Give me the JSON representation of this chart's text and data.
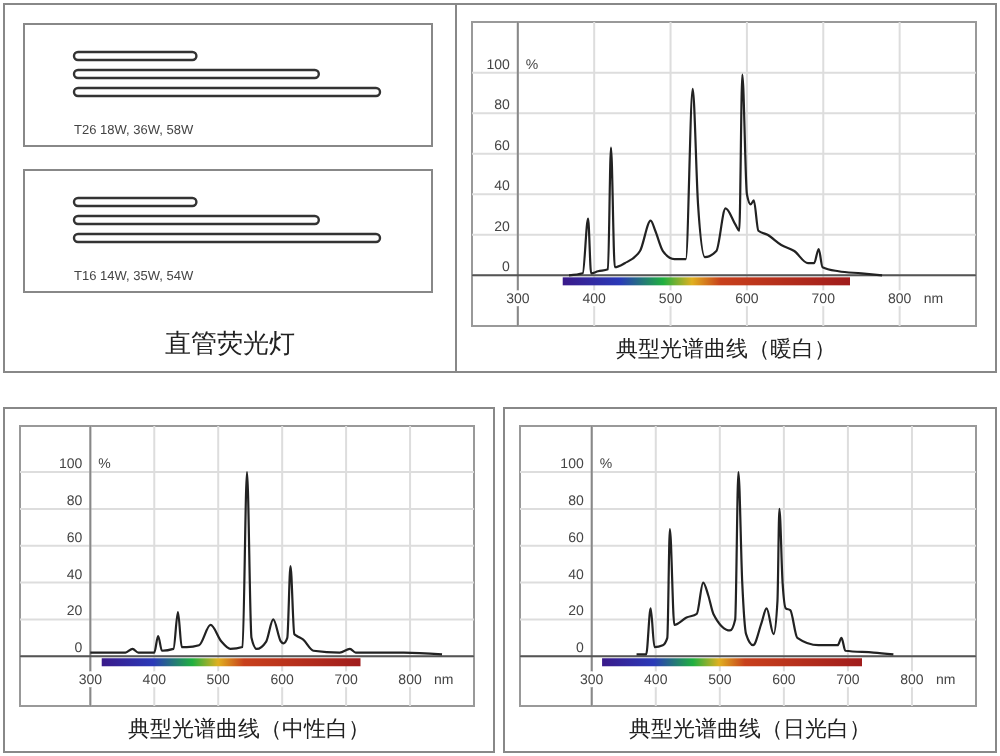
{
  "chart_data": [
    {
      "type": "other",
      "title": "直管荧光灯",
      "annotations": [
        "T26  18W, 36W, 58W",
        "T16  14W, 35W, 54W"
      ]
    },
    {
      "type": "line",
      "title": "典型光谱曲线（暖白）",
      "xlabel": "nm",
      "ylabel": "%",
      "xlim": [
        240,
        900
      ],
      "ylim": [
        -25,
        125
      ],
      "xticks": [
        300,
        400,
        500,
        600,
        700,
        800
      ],
      "yticks": [
        0,
        20,
        40,
        60,
        80,
        100
      ],
      "grid": true,
      "marker": "none",
      "line_style": "solid",
      "series": [
        {
          "color": "#222222",
          "x": [
            367,
            385,
            392,
            396,
            405,
            418,
            422,
            427,
            440,
            460,
            474,
            480,
            490,
            505,
            520,
            529,
            536,
            545,
            560,
            572,
            585,
            590,
            594,
            600,
            605,
            609,
            615,
            627,
            645,
            662,
            680,
            688,
            694,
            699,
            720,
            750,
            777
          ],
          "values": [
            0,
            1,
            28,
            1,
            2,
            3,
            63,
            4,
            6,
            12,
            27,
            22,
            12,
            8,
            8,
            92,
            35,
            9,
            12,
            33,
            25,
            22,
            99,
            40,
            35,
            37,
            22,
            20,
            15,
            12,
            6,
            6,
            13,
            4,
            2,
            1,
            0
          ]
        }
      ]
    },
    {
      "type": "line",
      "title": "典型光谱曲线（中性白）",
      "xlabel": "nm",
      "ylabel": "%",
      "xlim": [
        190,
        900
      ],
      "ylim": [
        -27,
        125
      ],
      "xticks": [
        300,
        400,
        500,
        600,
        700,
        800
      ],
      "yticks": [
        0,
        20,
        40,
        60,
        80,
        100
      ],
      "grid": true,
      "marker": "none",
      "line_style": "solid",
      "series": [
        {
          "color": "#222222",
          "x": [
            300,
            355,
            366,
            375,
            400,
            406,
            412,
            430,
            437,
            443,
            451,
            470,
            488,
            505,
            519,
            538,
            545,
            552,
            560,
            575,
            586,
            598,
            602,
            608,
            613,
            619,
            623,
            633,
            649,
            690,
            706,
            715,
            790,
            850
          ],
          "values": [
            2,
            2,
            4,
            2,
            2,
            11,
            3,
            4,
            24,
            5,
            5,
            6,
            17,
            8,
            4,
            5,
            100,
            10,
            4,
            8,
            20,
            8,
            7,
            10,
            49,
            12,
            11,
            9,
            3,
            2,
            4,
            2,
            2,
            1
          ]
        }
      ]
    },
    {
      "type": "line",
      "title": "典型光谱曲线（日光白）",
      "xlabel": "nm",
      "ylabel": "%",
      "xlim": [
        188,
        900
      ],
      "ylim": [
        -27,
        125
      ],
      "xticks": [
        300,
        400,
        500,
        600,
        700,
        800
      ],
      "yticks": [
        0,
        20,
        40,
        60,
        80,
        100
      ],
      "grid": true,
      "marker": "none",
      "line_style": "solid",
      "series": [
        {
          "color": "#222222",
          "x": [
            370,
            385,
            392,
            398,
            411,
            418,
            422,
            429,
            448,
            464,
            474,
            482,
            490,
            516,
            524,
            529,
            535,
            541,
            552,
            565,
            573,
            584,
            590,
            593,
            598,
            603,
            610,
            621,
            654,
            684,
            690,
            696,
            740,
            771
          ],
          "values": [
            1,
            1,
            26,
            5,
            6,
            10,
            69,
            17,
            21,
            23,
            40,
            33,
            23,
            14,
            20,
            100,
            40,
            12,
            6,
            18,
            26,
            12,
            30,
            80,
            40,
            26,
            25,
            10,
            6,
            6,
            10,
            3,
            2,
            1
          ]
        }
      ]
    }
  ]
}
